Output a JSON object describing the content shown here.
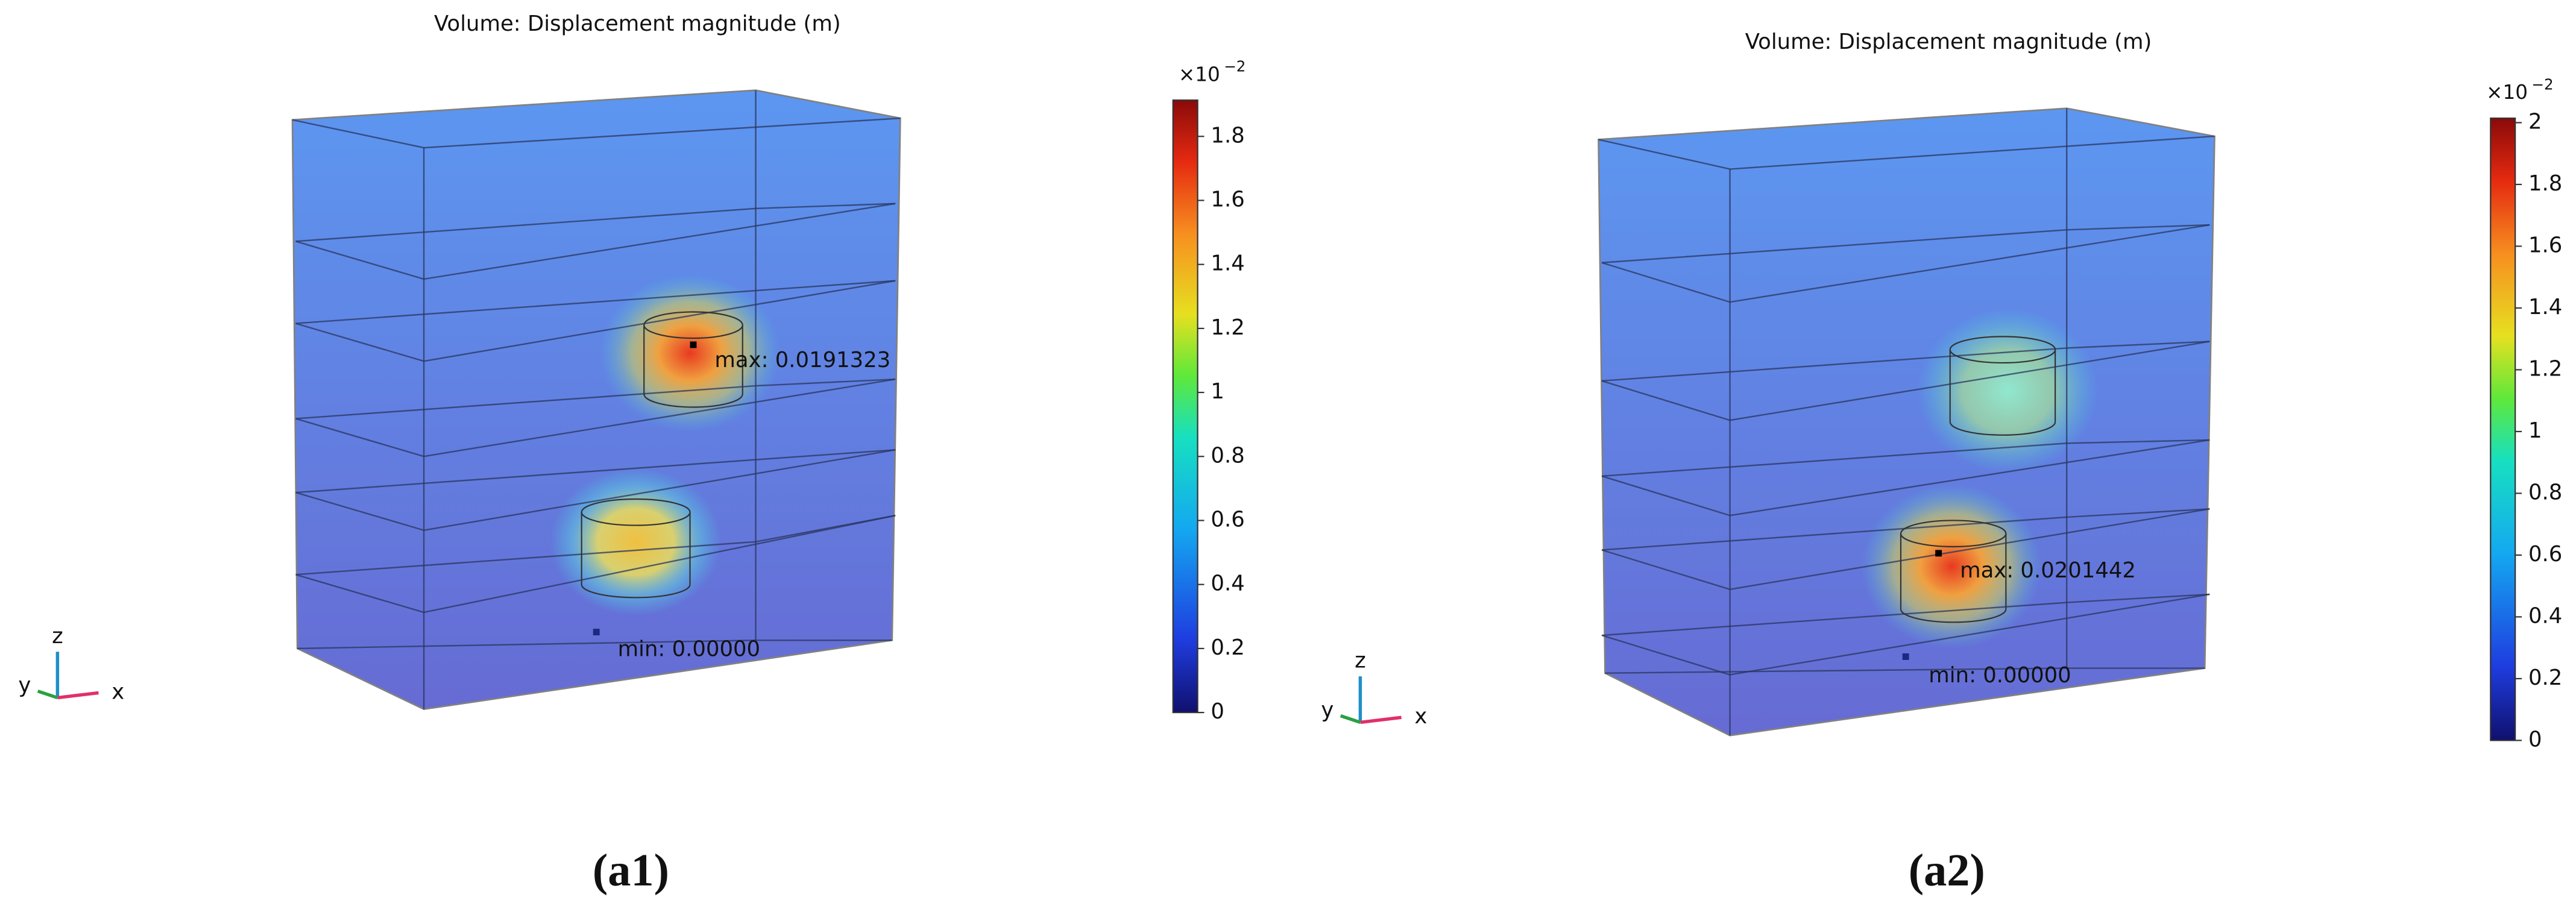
{
  "panels": [
    {
      "title": "Volume: Displacement magnitude (m)",
      "caption": "(a1)",
      "max_label": "max: 0.0191323",
      "min_label": "min: 0.00000",
      "axes": {
        "x": "x",
        "y": "y",
        "z": "z"
      },
      "colorbar": {
        "scale": "×10",
        "exponent": "−2",
        "lim": [
          0,
          1.91323
        ],
        "ticks": [
          0,
          0.2,
          0.4,
          0.6,
          0.8,
          1,
          1.2,
          1.4,
          1.6,
          1.8
        ]
      }
    },
    {
      "title": "Volume: Displacement magnitude (m)",
      "caption": "(a2)",
      "max_label": "max: 0.0201442",
      "min_label": "min: 0.00000",
      "axes": {
        "x": "x",
        "y": "y",
        "z": "z"
      },
      "colorbar": {
        "scale": "×10",
        "exponent": "−2",
        "lim": [
          0,
          2.01442
        ],
        "ticks": [
          0,
          0.2,
          0.4,
          0.6,
          0.8,
          1,
          1.2,
          1.4,
          1.6,
          1.8,
          2
        ]
      }
    }
  ]
}
